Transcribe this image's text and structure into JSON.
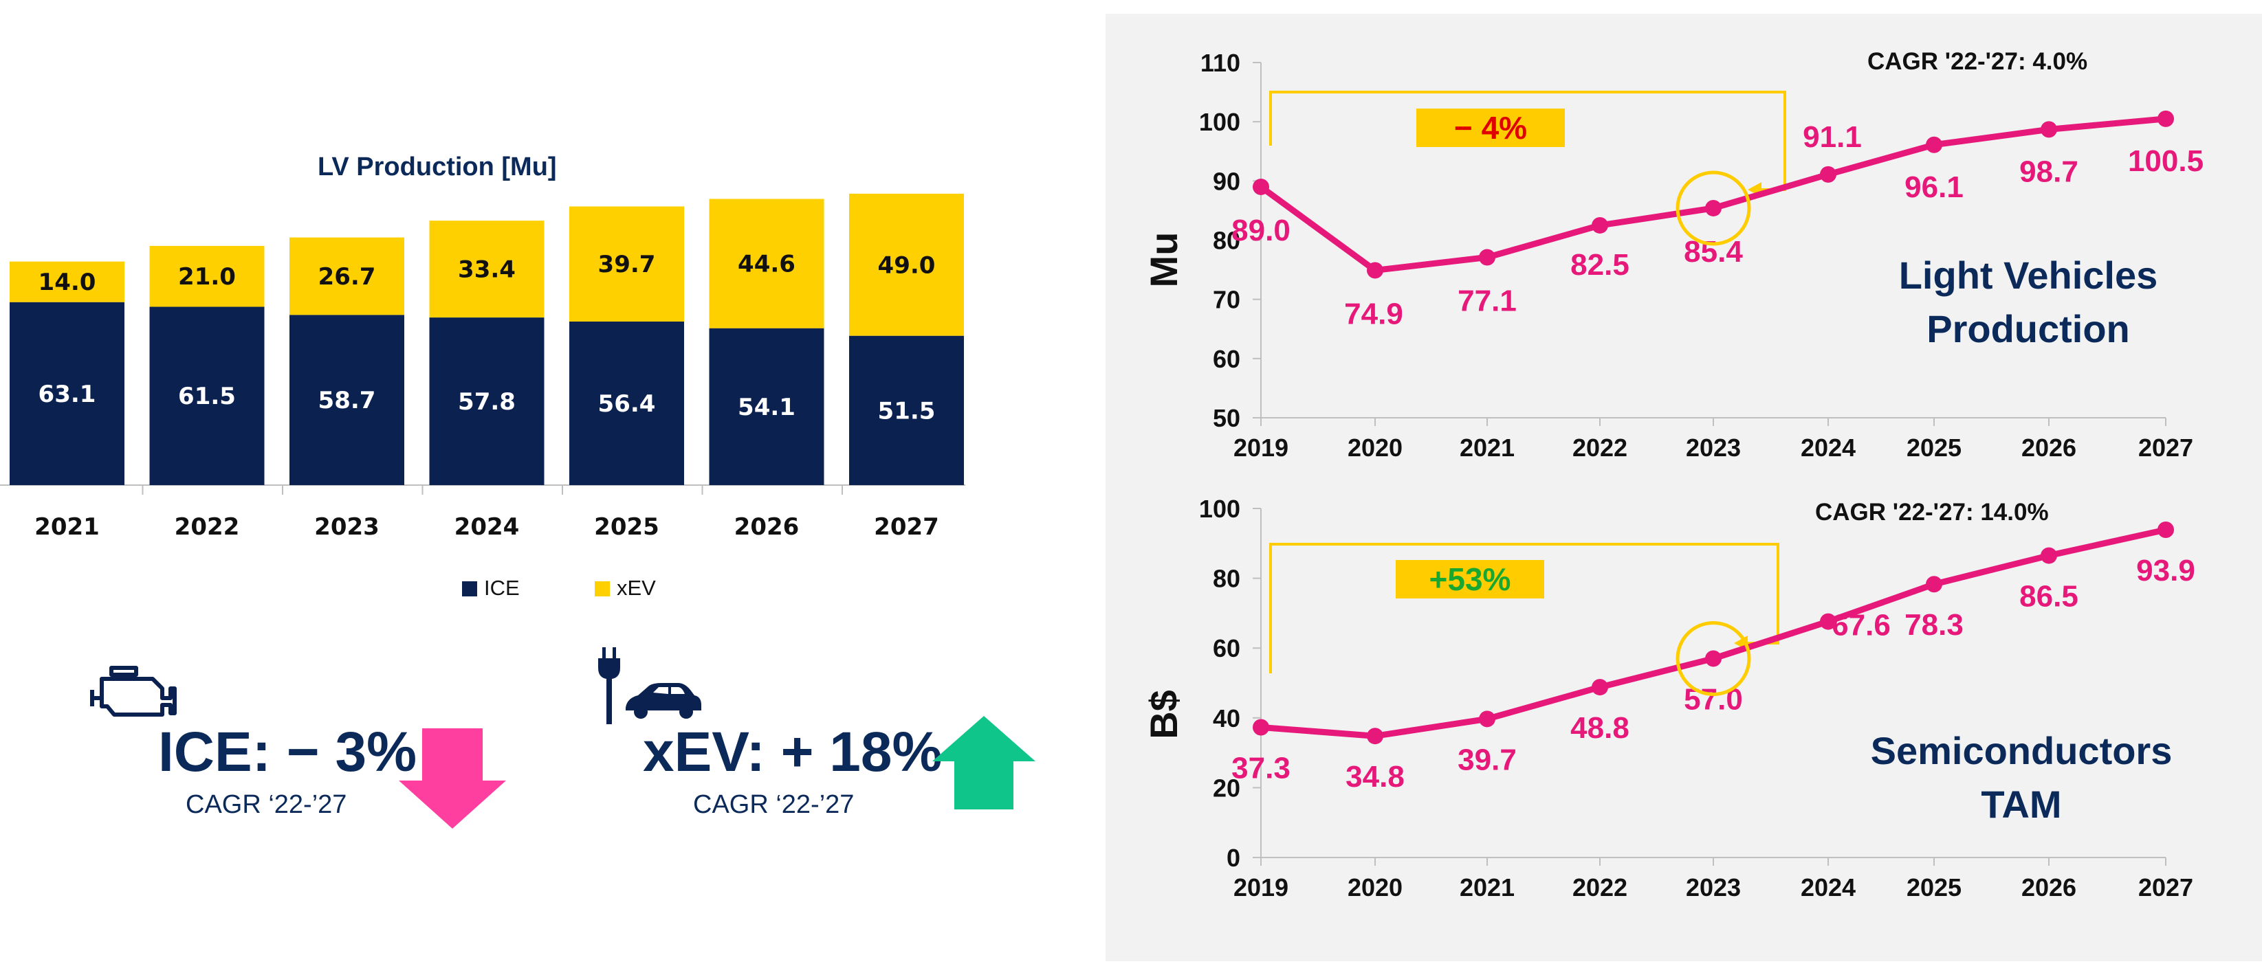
{
  "colors": {
    "ice": "#0b2150",
    "xev": "#ffd000",
    "line": "#e6197a",
    "navy_text": "#0b2a5a",
    "down_arrow": "#ff3fa0",
    "up_arrow": "#10c58a",
    "badge": "#ffcc00",
    "negative": "#e00000",
    "positive": "#18a832",
    "panel_bg": "#f2f2f2"
  },
  "left": {
    "ice_cagr": {
      "label": "ICE:",
      "value": "− 3%",
      "sub": "CAGR ‘22-’27",
      "icon": "engine-icon",
      "arrow": "arrow-down-icon"
    },
    "xev_cagr": {
      "label": "xEV:",
      "value": "+ 18%",
      "sub": "CAGR ‘22-’27",
      "icon": "plug-car-icon",
      "arrow": "arrow-up-icon"
    }
  },
  "right": {
    "lv": {
      "title_line1": "Light Vehicles",
      "title_line2": "Production",
      "cagr": "CAGR '22-'27: 4.0%",
      "change": "− 4%"
    },
    "semi": {
      "title_line1": "Semiconductors",
      "title_line2": "TAM",
      "cagr": "CAGR '22-'27: 14.0%",
      "change": "+53%"
    }
  },
  "chart_data": [
    {
      "type": "bar",
      "stacked": true,
      "title": "LV Production [Mu]",
      "categories": [
        "2021",
        "2022",
        "2023",
        "2024",
        "2025",
        "2026",
        "2027"
      ],
      "series": [
        {
          "name": "ICE",
          "values": [
            63.1,
            61.5,
            58.7,
            57.8,
            56.4,
            54.1,
            51.5
          ]
        },
        {
          "name": "xEV",
          "values": [
            14.0,
            21.0,
            26.7,
            33.4,
            39.7,
            44.6,
            49.0
          ]
        }
      ],
      "value_labels": {
        "ICE": [
          "63.1",
          "61.5",
          "58.7",
          "57.8",
          "56.4",
          "54.1",
          "51.5"
        ],
        "xEV": [
          "14.0",
          "21.0",
          "26.7",
          "33.4",
          "39.7",
          "44.6",
          "49.0"
        ]
      },
      "legend": "bottom",
      "ylim": [
        0,
        110
      ]
    },
    {
      "type": "line",
      "title": "Light Vehicles Production",
      "x": [
        "2019",
        "2020",
        "2021",
        "2022",
        "2023",
        "2024",
        "2025",
        "2026",
        "2027"
      ],
      "values": [
        89.0,
        74.9,
        77.1,
        82.5,
        85.4,
        91.1,
        96.1,
        98.7,
        100.5
      ],
      "labels": [
        "89.0",
        "74.9",
        "77.1",
        "82.5",
        "85.4",
        "91.1",
        "96.1",
        "98.7",
        "100.5"
      ],
      "ylabel": "Mu",
      "ylim": [
        50,
        110
      ],
      "yticks": [
        50,
        60,
        70,
        80,
        90,
        100,
        110
      ],
      "highlight": "2023",
      "bracket_from": "2019",
      "bracket_to": "2023"
    },
    {
      "type": "line",
      "title": "Semiconductors TAM",
      "x": [
        "2019",
        "2020",
        "2021",
        "2022",
        "2023",
        "2024",
        "2025",
        "2026",
        "2027"
      ],
      "values": [
        37.3,
        34.8,
        39.7,
        48.8,
        57.0,
        67.6,
        78.3,
        86.5,
        93.9
      ],
      "labels": [
        "37.3",
        "34.8",
        "39.7",
        "48.8",
        "57.0",
        "67.6",
        "78.3",
        "86.5",
        "93.9"
      ],
      "ylabel": "B$",
      "ylim": [
        0,
        100
      ],
      "yticks": [
        0,
        20,
        40,
        60,
        80,
        100
      ],
      "highlight": "2023",
      "bracket_from": "2019",
      "bracket_to": "2023"
    }
  ]
}
